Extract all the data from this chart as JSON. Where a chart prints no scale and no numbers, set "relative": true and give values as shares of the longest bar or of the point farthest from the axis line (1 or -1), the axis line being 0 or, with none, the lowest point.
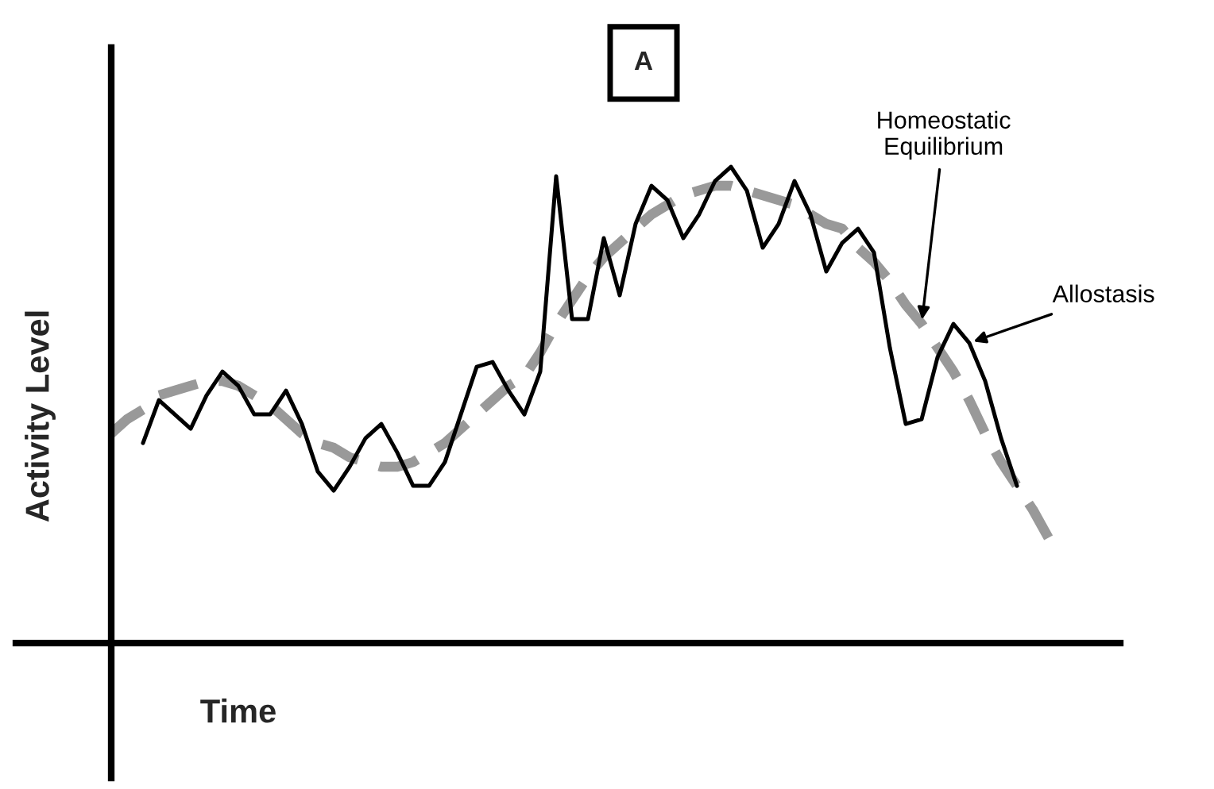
{
  "chart_data": {
    "type": "line",
    "title": "A",
    "xlabel": "Time",
    "ylabel": "Activity Level",
    "relative": true,
    "legend": false,
    "categories": [
      null,
      null,
      null,
      null,
      null,
      null,
      null,
      null,
      null,
      null,
      null,
      null,
      null,
      null,
      null,
      null,
      null,
      null,
      null,
      null,
      null,
      null,
      null,
      null,
      null,
      null,
      null,
      null,
      null,
      null,
      null,
      null,
      null,
      null,
      null,
      null,
      null,
      null,
      null,
      null,
      null,
      null,
      null,
      null,
      null,
      null,
      null,
      null,
      null,
      null,
      null,
      null,
      null,
      null,
      null,
      null,
      null,
      null,
      null,
      null
    ],
    "series": [
      {
        "name": "Homeostatic\nEquilibrium",
        "color": "#999999",
        "line_style": "dashed",
        "values": [
          0.44,
          0.47,
          0.49,
          0.52,
          0.53,
          0.54,
          0.55,
          0.55,
          0.54,
          0.52,
          0.5,
          0.47,
          0.44,
          0.42,
          0.41,
          0.39,
          0.38,
          0.37,
          0.37,
          0.38,
          0.4,
          0.42,
          0.45,
          0.48,
          0.51,
          0.54,
          0.56,
          0.61,
          0.67,
          0.72,
          0.77,
          0.81,
          0.84,
          0.87,
          0.9,
          0.92,
          0.94,
          0.95,
          0.96,
          0.96,
          0.95,
          0.94,
          0.93,
          0.92,
          0.9,
          0.88,
          0.87,
          0.83,
          0.8,
          0.76,
          0.71,
          0.67,
          0.62,
          0.57,
          0.51,
          0.44,
          0.38,
          0.33,
          0.28,
          0.22
        ]
      },
      {
        "name": "Allostasis",
        "color": "#000000",
        "line_style": "solid",
        "values": [
          null,
          null,
          0.42,
          0.51,
          0.48,
          0.45,
          0.52,
          0.57,
          0.54,
          0.48,
          0.48,
          0.53,
          0.46,
          0.36,
          0.32,
          0.37,
          0.43,
          0.46,
          0.4,
          0.33,
          0.33,
          0.38,
          0.48,
          0.58,
          0.59,
          0.53,
          0.48,
          0.57,
          0.98,
          0.68,
          0.68,
          0.85,
          0.73,
          0.88,
          0.96,
          0.93,
          0.85,
          0.9,
          0.97,
          1.0,
          0.95,
          0.83,
          0.88,
          0.97,
          0.9,
          0.78,
          0.84,
          0.87,
          0.82,
          0.62,
          0.46,
          0.47,
          0.6,
          0.67,
          0.63,
          0.55,
          0.43,
          0.33,
          null,
          null
        ]
      }
    ]
  }
}
